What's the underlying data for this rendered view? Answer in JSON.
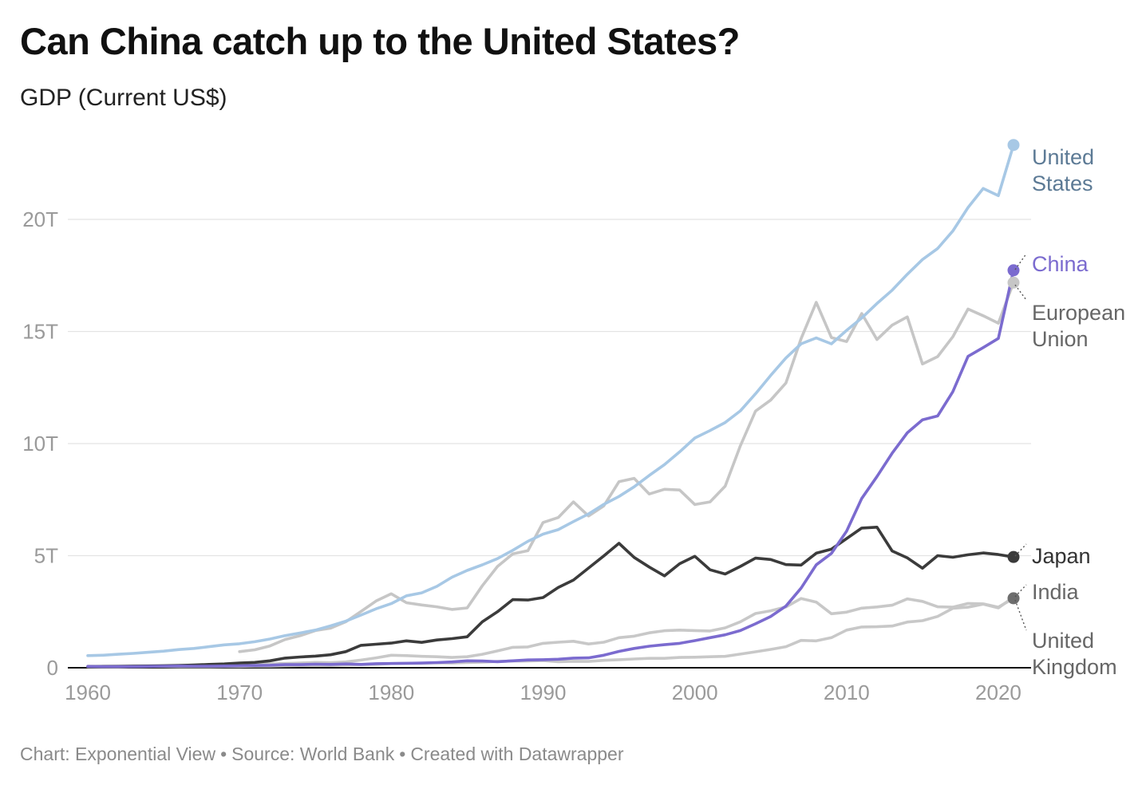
{
  "title": "Can China catch up to the United States?",
  "subtitle": "GDP (Current US$)",
  "footer": {
    "chart": "Chart: Exponential View",
    "source": "Source: World Bank",
    "created": "Created with Datawrapper"
  },
  "chart_data": {
    "type": "line",
    "title": "Can China catch up to the United States?",
    "subtitle": "GDP (Current US$)",
    "x_range": [
      1960,
      2021
    ],
    "ylim": [
      0,
      23
    ],
    "y_ticks": [
      {
        "value": 0,
        "label": "0"
      },
      {
        "value": 5,
        "label": "5T"
      },
      {
        "value": 10,
        "label": "10T"
      },
      {
        "value": 15,
        "label": "15T"
      },
      {
        "value": 20,
        "label": "20T"
      }
    ],
    "x_ticks": [
      {
        "value": 1960,
        "label": "1960"
      },
      {
        "value": 1970,
        "label": "1970"
      },
      {
        "value": 1980,
        "label": "1980"
      },
      {
        "value": 1990,
        "label": "1990"
      },
      {
        "value": 2000,
        "label": "2000"
      },
      {
        "value": 2010,
        "label": "2010"
      },
      {
        "value": 2020,
        "label": "2020"
      }
    ],
    "grid": true,
    "legend": "direct labels at line ends",
    "series": [
      {
        "key": "uk",
        "label_lines": [
          "United",
          "Kingdom"
        ],
        "color": "#c8c8c8",
        "label_color": "#666666",
        "start_year": 1960,
        "end_marker": false,
        "values": [
          0.07,
          0.08,
          0.08,
          0.09,
          0.09,
          0.1,
          0.11,
          0.11,
          0.11,
          0.12,
          0.13,
          0.15,
          0.17,
          0.19,
          0.21,
          0.24,
          0.23,
          0.26,
          0.34,
          0.44,
          0.56,
          0.54,
          0.51,
          0.49,
          0.46,
          0.49,
          0.6,
          0.75,
          0.91,
          0.93,
          1.09,
          1.14,
          1.18,
          1.06,
          1.14,
          1.34,
          1.41,
          1.56,
          1.65,
          1.68,
          1.66,
          1.64,
          1.78,
          2.05,
          2.42,
          2.54,
          2.71,
          3.09,
          2.93,
          2.41,
          2.48,
          2.66,
          2.71,
          2.79,
          3.07,
          2.96,
          2.72,
          2.7,
          2.87,
          2.85,
          2.7,
          3.1
        ]
      },
      {
        "key": "india",
        "label_lines": [
          "India"
        ],
        "color": "#c8c8c8",
        "label_color": "#666666",
        "start_year": 1960,
        "end_marker": false,
        "values": [
          0.04,
          0.04,
          0.04,
          0.05,
          0.06,
          0.06,
          0.05,
          0.05,
          0.05,
          0.06,
          0.06,
          0.07,
          0.07,
          0.09,
          0.1,
          0.1,
          0.1,
          0.12,
          0.14,
          0.15,
          0.19,
          0.2,
          0.2,
          0.22,
          0.21,
          0.23,
          0.25,
          0.28,
          0.3,
          0.3,
          0.32,
          0.27,
          0.29,
          0.28,
          0.33,
          0.36,
          0.39,
          0.42,
          0.42,
          0.46,
          0.47,
          0.49,
          0.51,
          0.61,
          0.71,
          0.82,
          0.94,
          1.22,
          1.2,
          1.34,
          1.68,
          1.82,
          1.83,
          1.86,
          2.04,
          2.1,
          2.29,
          2.65,
          2.7,
          2.84,
          2.67,
          3.15
        ]
      },
      {
        "key": "eu",
        "label_lines": [
          "European",
          "Union"
        ],
        "color": "#c6c6c6",
        "label_color": "#666666",
        "start_year": 1970,
        "end_marker": true,
        "values": [
          0.72,
          0.8,
          0.97,
          1.26,
          1.43,
          1.66,
          1.77,
          2.05,
          2.51,
          2.98,
          3.3,
          2.9,
          2.8,
          2.72,
          2.6,
          2.67,
          3.66,
          4.52,
          5.08,
          5.22,
          6.48,
          6.7,
          7.4,
          6.77,
          7.22,
          8.3,
          8.45,
          7.75,
          7.96,
          7.93,
          7.28,
          7.4,
          8.1,
          9.9,
          11.45,
          11.94,
          12.7,
          14.68,
          16.3,
          14.73,
          14.55,
          15.8,
          14.64,
          15.28,
          15.65,
          13.55,
          13.88,
          14.76,
          16.0,
          15.7,
          15.37,
          17.18
        ]
      },
      {
        "key": "us",
        "label_lines": [
          "United",
          "States"
        ],
        "color": "#a7c8e5",
        "label_color": "#5c7a95",
        "start_year": 1960,
        "end_marker": true,
        "values": [
          0.54,
          0.56,
          0.6,
          0.64,
          0.69,
          0.74,
          0.81,
          0.86,
          0.94,
          1.02,
          1.07,
          1.16,
          1.28,
          1.43,
          1.55,
          1.68,
          1.87,
          2.08,
          2.35,
          2.63,
          2.86,
          3.21,
          3.34,
          3.63,
          4.04,
          4.34,
          4.59,
          4.87,
          5.24,
          5.64,
          5.96,
          6.16,
          6.52,
          6.86,
          7.29,
          7.64,
          8.07,
          8.58,
          9.06,
          9.63,
          10.25,
          10.58,
          10.94,
          11.46,
          12.22,
          13.04,
          13.82,
          14.45,
          14.71,
          14.45,
          15.05,
          15.6,
          16.25,
          16.84,
          17.55,
          18.21,
          18.7,
          19.48,
          20.53,
          21.38,
          21.06,
          23.32
        ]
      },
      {
        "key": "japan",
        "label_lines": [
          "Japan"
        ],
        "color": "#3b3b3b",
        "label_color": "#333333",
        "start_year": 1960,
        "end_marker": true,
        "values": [
          0.04,
          0.05,
          0.06,
          0.07,
          0.08,
          0.09,
          0.1,
          0.12,
          0.15,
          0.17,
          0.21,
          0.24,
          0.31,
          0.43,
          0.48,
          0.52,
          0.58,
          0.72,
          1.0,
          1.05,
          1.1,
          1.2,
          1.13,
          1.24,
          1.3,
          1.38,
          2.05,
          2.5,
          3.04,
          3.02,
          3.13,
          3.58,
          3.91,
          4.45,
          4.99,
          5.55,
          4.92,
          4.49,
          4.1,
          4.64,
          4.97,
          4.37,
          4.18,
          4.52,
          4.89,
          4.83,
          4.6,
          4.58,
          5.11,
          5.29,
          5.76,
          6.23,
          6.27,
          5.21,
          4.9,
          4.44,
          5.0,
          4.93,
          5.04,
          5.12,
          5.05,
          4.94
        ]
      },
      {
        "key": "china",
        "label_lines": [
          "China"
        ],
        "color": "#7b6bcf",
        "label_color": "#7b6bcf",
        "start_year": 1960,
        "end_marker": true,
        "values": [
          0.06,
          0.05,
          0.05,
          0.05,
          0.06,
          0.07,
          0.08,
          0.07,
          0.07,
          0.08,
          0.09,
          0.1,
          0.11,
          0.14,
          0.14,
          0.16,
          0.15,
          0.17,
          0.15,
          0.18,
          0.19,
          0.2,
          0.21,
          0.23,
          0.26,
          0.31,
          0.3,
          0.27,
          0.31,
          0.35,
          0.36,
          0.38,
          0.43,
          0.44,
          0.56,
          0.73,
          0.86,
          0.96,
          1.03,
          1.09,
          1.21,
          1.34,
          1.47,
          1.66,
          1.96,
          2.29,
          2.75,
          3.55,
          4.59,
          5.1,
          6.09,
          7.55,
          8.53,
          9.57,
          10.48,
          11.06,
          11.23,
          12.31,
          13.89,
          14.28,
          14.69,
          17.73
        ]
      }
    ]
  }
}
